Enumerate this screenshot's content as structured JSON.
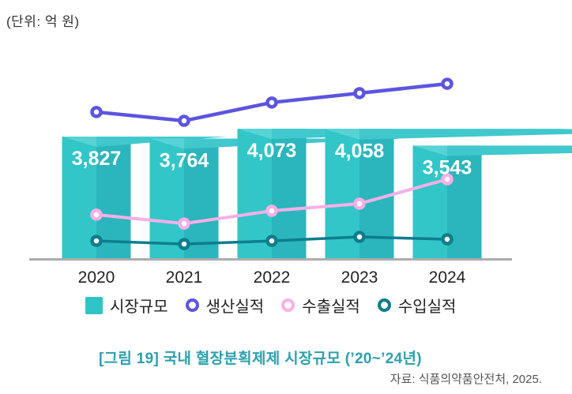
{
  "unit_label": "(단위: 억 원)",
  "chart_data": {
    "type": "bar",
    "subtype": "bar-line-combo",
    "title": "국내 혈장분획제제 시장규모 (’20~’24년)",
    "xlabel": "",
    "ylabel": "억 원",
    "ylim": [
      0,
      6000
    ],
    "grid": false,
    "legend_position": "bottom",
    "categories": [
      "2020",
      "2021",
      "2022",
      "2023",
      "2024"
    ],
    "bar_series": {
      "name": "시장규모",
      "values": [
        3827,
        3764,
        4073,
        4058,
        3543
      ],
      "labels": [
        "3,827",
        "3,764",
        "4,073",
        "4,058",
        "3,543"
      ]
    },
    "line_series": [
      {
        "name": "생산실적",
        "color": "#5C55E0",
        "estimated": true,
        "values": [
          4600,
          4325,
          4900,
          5195,
          5490
        ]
      },
      {
        "name": "수출실적",
        "color": "#F9AFE7",
        "estimated": true,
        "values": [
          1370,
          1090,
          1490,
          1715,
          2485
        ]
      },
      {
        "name": "수입실적",
        "color": "#0E7D8E",
        "estimated": true,
        "values": [
          545,
          445,
          545,
          670,
          595
        ]
      }
    ]
  },
  "legend": {
    "items": [
      {
        "label": "시장규모",
        "marker": "square",
        "color": "#2FC5C7"
      },
      {
        "label": "생산실적",
        "marker": "ring",
        "color": "#5C55E0"
      },
      {
        "label": "수출실적",
        "marker": "ring",
        "color": "#F9AFE7"
      },
      {
        "label": "수입실적",
        "marker": "ring",
        "color": "#0E7D8E"
      }
    ]
  },
  "caption": "[그림 19] 국내 혈장분획제제 시장규모 (’20~’24년)",
  "source": "자료: 식품의약품안전처, 2025.",
  "colors": {
    "bar_left": "#32C6C8",
    "bar_right": "#2AB6BC",
    "bar_top_left": "#58D3D5",
    "bar_top_right": "#41C8CD",
    "axis": "#ACACAC",
    "value_label": "#FFFFFF",
    "year_label": "#222222",
    "caption": "#2CA0B0"
  }
}
